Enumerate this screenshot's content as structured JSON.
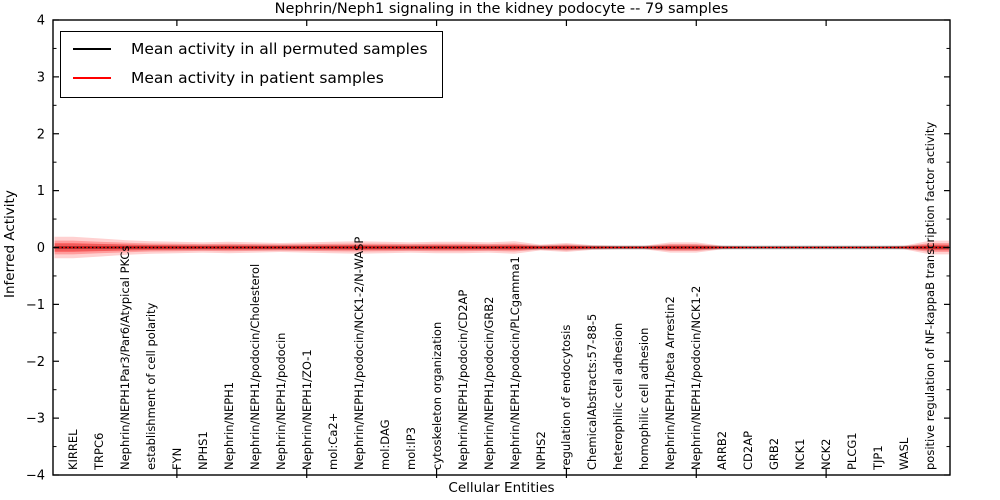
{
  "title": "Nephrin/Neph1 signaling in the kidney podocyte -- 79 samples",
  "axes": {
    "ylabel": "Inferred Activity",
    "xlabel": "Cellular Entities"
  },
  "legend": {
    "items": [
      {
        "label": "Mean activity in all permuted samples",
        "color": "#000000"
      },
      {
        "label": "Mean activity in patient samples",
        "color": "#ff0000"
      }
    ]
  },
  "chart_data": {
    "type": "line",
    "title": "Nephrin/Neph1 signaling in the kidney podocyte -- 79 samples",
    "xlabel": "Cellular Entities",
    "ylabel": "Inferred Activity",
    "ylim": [
      -4,
      4
    ],
    "yticks": [
      -4,
      -3,
      -2,
      -1,
      0,
      1,
      2,
      3,
      4
    ],
    "y_minor_step": 0.5,
    "grid": false,
    "legend_position": "upper left",
    "categories": [
      "KIRREL",
      "TRPC6",
      "Nephrin/NEPH1Par3/Par6/Atypical PKCs",
      "establishment of cell polarity",
      "FYN",
      "NPHS1",
      "Nephrin/NEPH1",
      "Nephrin/NEPH1/podocin/Cholesterol",
      "Nephrin/NEPH1/podocin",
      "Nephrin/NEPH1/ZO-1",
      "mol:Ca2+",
      "Nephrin/NEPH1/podocin/NCK1-2/N-WASP",
      "mol:DAG",
      "mol:IP3",
      "cytoskeleton organization",
      "Nephrin/NEPH1/podocin/CD2AP",
      "Nephrin/NEPH1/podocin/GRB2",
      "Nephrin/NEPH1/podocin/PLCgamma1",
      "NPHS2",
      "regulation of endocytosis",
      "ChemicalAbstracts:57-88-5",
      "heterophilic cell adhesion",
      "homophilic cell adhesion",
      "Nephrin/NEPH1/beta Arrestin2",
      "Nephrin/NEPH1/podocin/NCK1-2",
      "ARRB2",
      "CD2AP",
      "GRB2",
      "NCK1",
      "NCK2",
      "PLCG1",
      "TJP1",
      "WASL",
      "positive regulation of NF-kappaB transcription factor activity"
    ],
    "x_major_tick_indices": [
      4,
      9,
      14,
      19,
      24,
      29
    ],
    "series": [
      {
        "name": "Mean activity in all permuted samples",
        "color": "#000000",
        "style": "solid-with-dot-overlay",
        "values": [
          0,
          0,
          0,
          0,
          0,
          0,
          0,
          0,
          0,
          0,
          0,
          0,
          0,
          0,
          0,
          0,
          0,
          0,
          0,
          0,
          0,
          0,
          0,
          0,
          0,
          0,
          0,
          0,
          0,
          0,
          0,
          0,
          0,
          0
        ]
      },
      {
        "name": "Mean activity in patient samples",
        "color": "#ff0000",
        "style": "solid",
        "values": [
          0,
          0,
          0,
          0,
          0,
          0,
          0,
          0,
          0,
          0,
          0,
          0,
          0,
          0,
          0,
          0,
          0,
          0,
          0,
          0,
          0,
          0,
          0,
          0,
          0,
          0,
          0,
          0,
          0,
          0,
          0,
          0,
          0,
          0
        ]
      }
    ],
    "bands": [
      {
        "name": "permuted-samples-range",
        "color": "#aaaaaa",
        "opacity": 0.35,
        "center": 0,
        "half_widths": [
          0.065,
          0.06,
          0.055,
          0.05,
          0.05,
          0.05,
          0.05,
          0.05,
          0.05,
          0.05,
          0.05,
          0.05,
          0.05,
          0.05,
          0.05,
          0.05,
          0.05,
          0.05,
          0.045,
          0.05,
          0.045,
          0.04,
          0.04,
          0.05,
          0.05,
          0.04,
          0.04,
          0.04,
          0.04,
          0.04,
          0.04,
          0.04,
          0.04,
          0.05
        ]
      },
      {
        "name": "patient-samples-range-outer",
        "color": "#ff0000",
        "opacity": 0.18,
        "center": 0,
        "half_widths": [
          0.19,
          0.16,
          0.13,
          0.11,
          0.1,
          0.09,
          0.1,
          0.09,
          0.08,
          0.09,
          0.1,
          0.11,
          0.1,
          0.09,
          0.1,
          0.1,
          0.09,
          0.11,
          0.05,
          0.08,
          0.04,
          0.03,
          0.03,
          0.09,
          0.09,
          0.03,
          0.02,
          0.02,
          0.02,
          0.02,
          0.02,
          0.02,
          0.03,
          0.12
        ]
      },
      {
        "name": "patient-samples-range-mid",
        "color": "#ff0000",
        "opacity": 0.25,
        "center": 0,
        "half_widths": [
          0.12,
          0.1,
          0.085,
          0.07,
          0.065,
          0.06,
          0.065,
          0.06,
          0.052,
          0.06,
          0.065,
          0.07,
          0.065,
          0.06,
          0.065,
          0.065,
          0.06,
          0.07,
          0.032,
          0.052,
          0.026,
          0.02,
          0.02,
          0.06,
          0.06,
          0.02,
          0.013,
          0.013,
          0.013,
          0.013,
          0.013,
          0.013,
          0.02,
          0.078
        ]
      },
      {
        "name": "patient-samples-range-inner",
        "color": "#ff0000",
        "opacity": 0.35,
        "center": 0,
        "half_widths": [
          0.076,
          0.064,
          0.052,
          0.044,
          0.04,
          0.036,
          0.04,
          0.036,
          0.032,
          0.036,
          0.04,
          0.044,
          0.04,
          0.036,
          0.04,
          0.04,
          0.036,
          0.044,
          0.02,
          0.032,
          0.016,
          0.012,
          0.012,
          0.036,
          0.036,
          0.012,
          0.008,
          0.008,
          0.008,
          0.008,
          0.008,
          0.008,
          0.012,
          0.048
        ]
      }
    ]
  }
}
